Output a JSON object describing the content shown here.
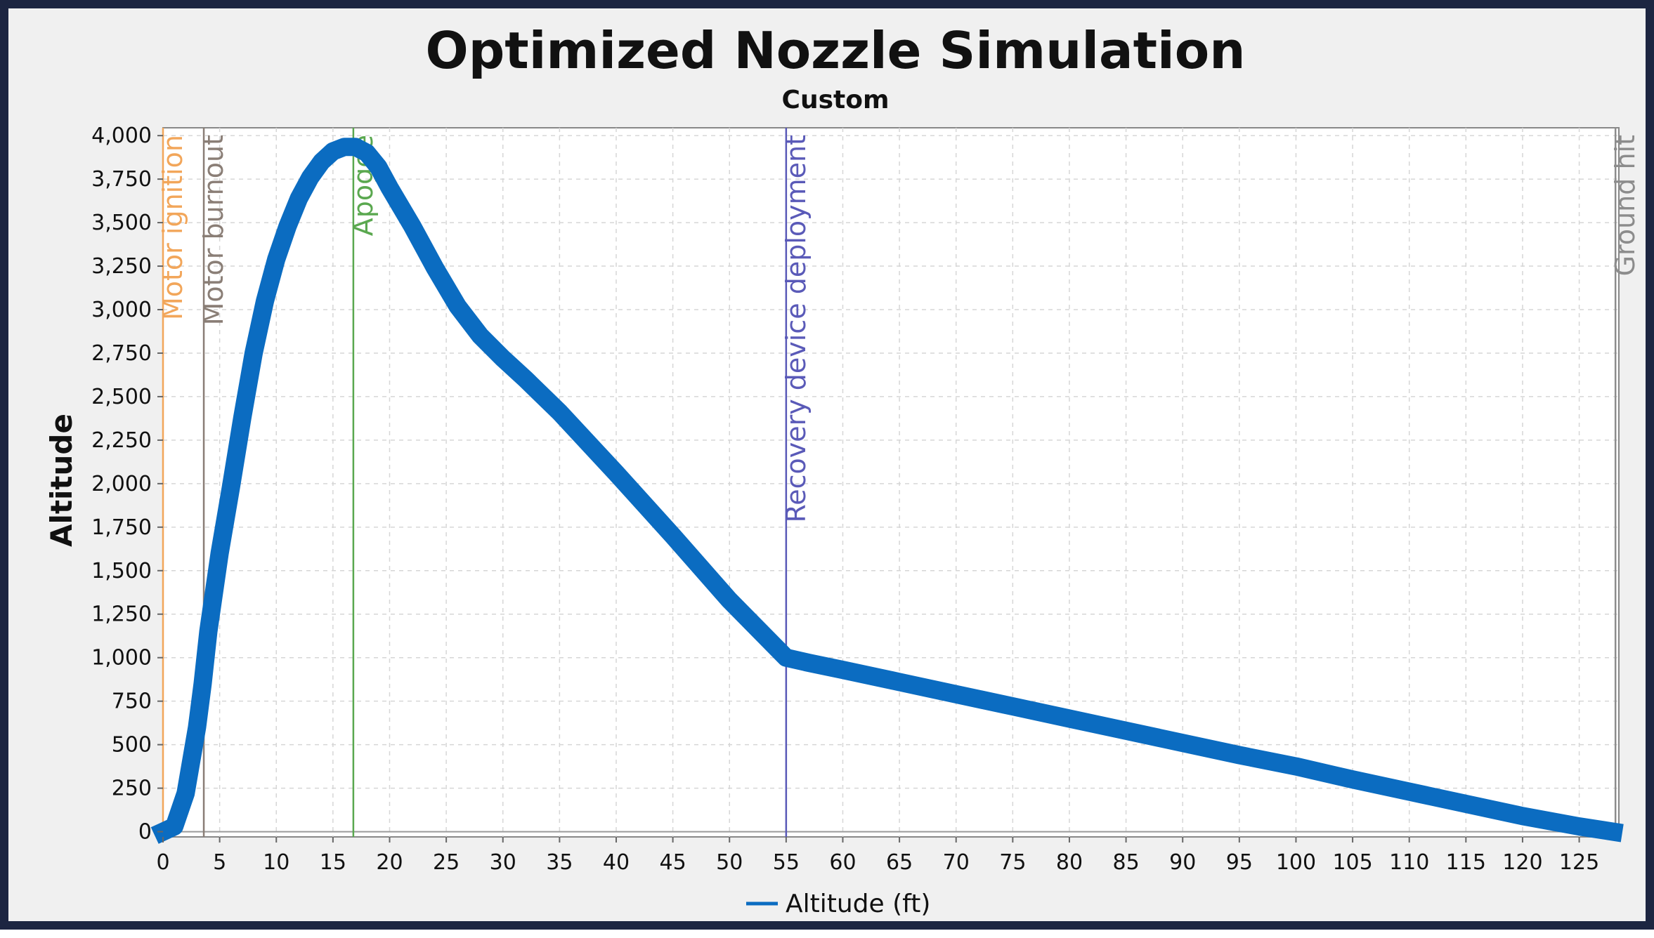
{
  "chart_data": {
    "type": "line",
    "title": "Optimized Nozzle Simulation",
    "subtitle": "Custom",
    "xlabel": "",
    "ylabel": "Altitude",
    "xlim": [
      0,
      128.5
    ],
    "ylim": [
      -30,
      4045
    ],
    "x_ticks": [
      0,
      5,
      10,
      15,
      20,
      25,
      30,
      35,
      40,
      45,
      50,
      55,
      60,
      65,
      70,
      75,
      80,
      85,
      90,
      95,
      100,
      105,
      110,
      115,
      120,
      125
    ],
    "y_ticks": [
      0,
      250,
      500,
      750,
      1000,
      1250,
      1500,
      1750,
      2000,
      2250,
      2500,
      2750,
      3000,
      3250,
      3500,
      3750,
      4000
    ],
    "x_tick_labels": [
      "0",
      "5",
      "10",
      "15",
      "20",
      "25",
      "30",
      "35",
      "40",
      "45",
      "50",
      "55",
      "60",
      "65",
      "70",
      "75",
      "80",
      "85",
      "90",
      "95",
      "100",
      "105",
      "110",
      "115",
      "120",
      "125"
    ],
    "y_tick_labels": [
      "0",
      "250",
      "500",
      "750",
      "1,000",
      "1,250",
      "1,500",
      "1,750",
      "2,000",
      "2,250",
      "2,500",
      "2,750",
      "3,000",
      "3,250",
      "3,500",
      "3,750",
      "4,000"
    ],
    "grid": true,
    "legend_position": "bottom-center",
    "series": [
      {
        "name": "Altitude (ft)",
        "color": "#0b6cc1",
        "x": [
          0,
          1,
          2,
          3,
          3.5,
          4,
          5,
          6,
          7,
          8,
          9,
          10,
          11,
          12,
          13,
          14,
          15,
          16,
          17,
          18,
          19,
          20,
          22,
          24,
          26,
          28,
          30,
          32,
          35,
          40,
          45,
          50,
          55,
          57,
          60,
          65,
          70,
          75,
          80,
          85,
          90,
          95,
          100,
          105,
          110,
          115,
          120,
          125,
          128
        ],
        "y": [
          0,
          30,
          220,
          600,
          850,
          1150,
          1600,
          1980,
          2380,
          2750,
          3050,
          3290,
          3480,
          3640,
          3760,
          3850,
          3910,
          3935,
          3935,
          3900,
          3820,
          3700,
          3480,
          3240,
          3020,
          2850,
          2720,
          2600,
          2410,
          2060,
          1700,
          1330,
          1000,
          970,
          930,
          860,
          790,
          720,
          650,
          580,
          510,
          440,
          375,
          300,
          230,
          160,
          90,
          30,
          0
        ]
      }
    ],
    "events": [
      {
        "label": "Motor ignition",
        "x": 0,
        "color": "#f2a65a"
      },
      {
        "label": "Motor burnout",
        "x": 3.6,
        "color": "#8a7e76"
      },
      {
        "label": "Apogee",
        "x": 16.8,
        "color": "#5aa84f"
      },
      {
        "label": "Recovery device deployment",
        "x": 55,
        "color": "#5a5ab8"
      },
      {
        "label": "Ground hit",
        "x": 128.2,
        "color": "#8c8c8c"
      }
    ]
  }
}
